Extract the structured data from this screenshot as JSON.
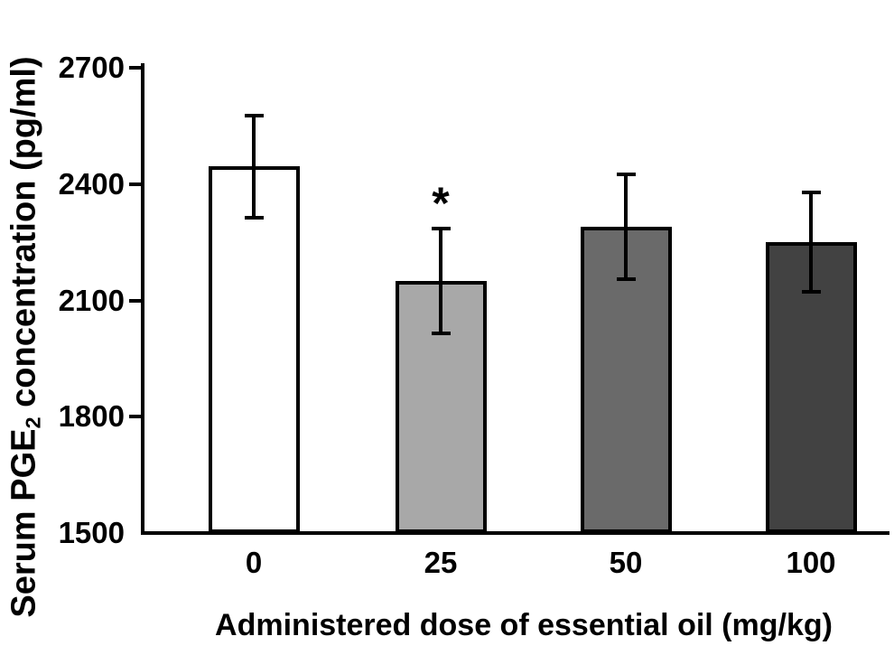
{
  "chart_data": {
    "type": "bar",
    "title": "",
    "categories": [
      "0",
      "25",
      "50",
      "100"
    ],
    "values": [
      2445,
      2150,
      2290,
      2250
    ],
    "errors": [
      132,
      136,
      135,
      128
    ],
    "bar_fill_colors": [
      "#ffffff",
      "#a8a8a8",
      "#6a6a6a",
      "#424242"
    ],
    "bar_border_color": "#000000",
    "axis_color": "#000000",
    "xlabel": "Administered dose of essential oil (mg/kg)",
    "ylabel": "Serum PGE2 concentration (pg/ml)",
    "ylabel_parts": {
      "pre": "Serum PGE",
      "sub": "2",
      "post": " concentration (pg/ml)"
    },
    "ylim": [
      1500,
      2700
    ],
    "yticks": [
      1500,
      1800,
      2100,
      2400,
      2700
    ],
    "grid": false,
    "legend": "none",
    "error_bar_style": "caps-both-ends",
    "annotations": [
      {
        "category_index": 1,
        "text": "*"
      }
    ]
  }
}
